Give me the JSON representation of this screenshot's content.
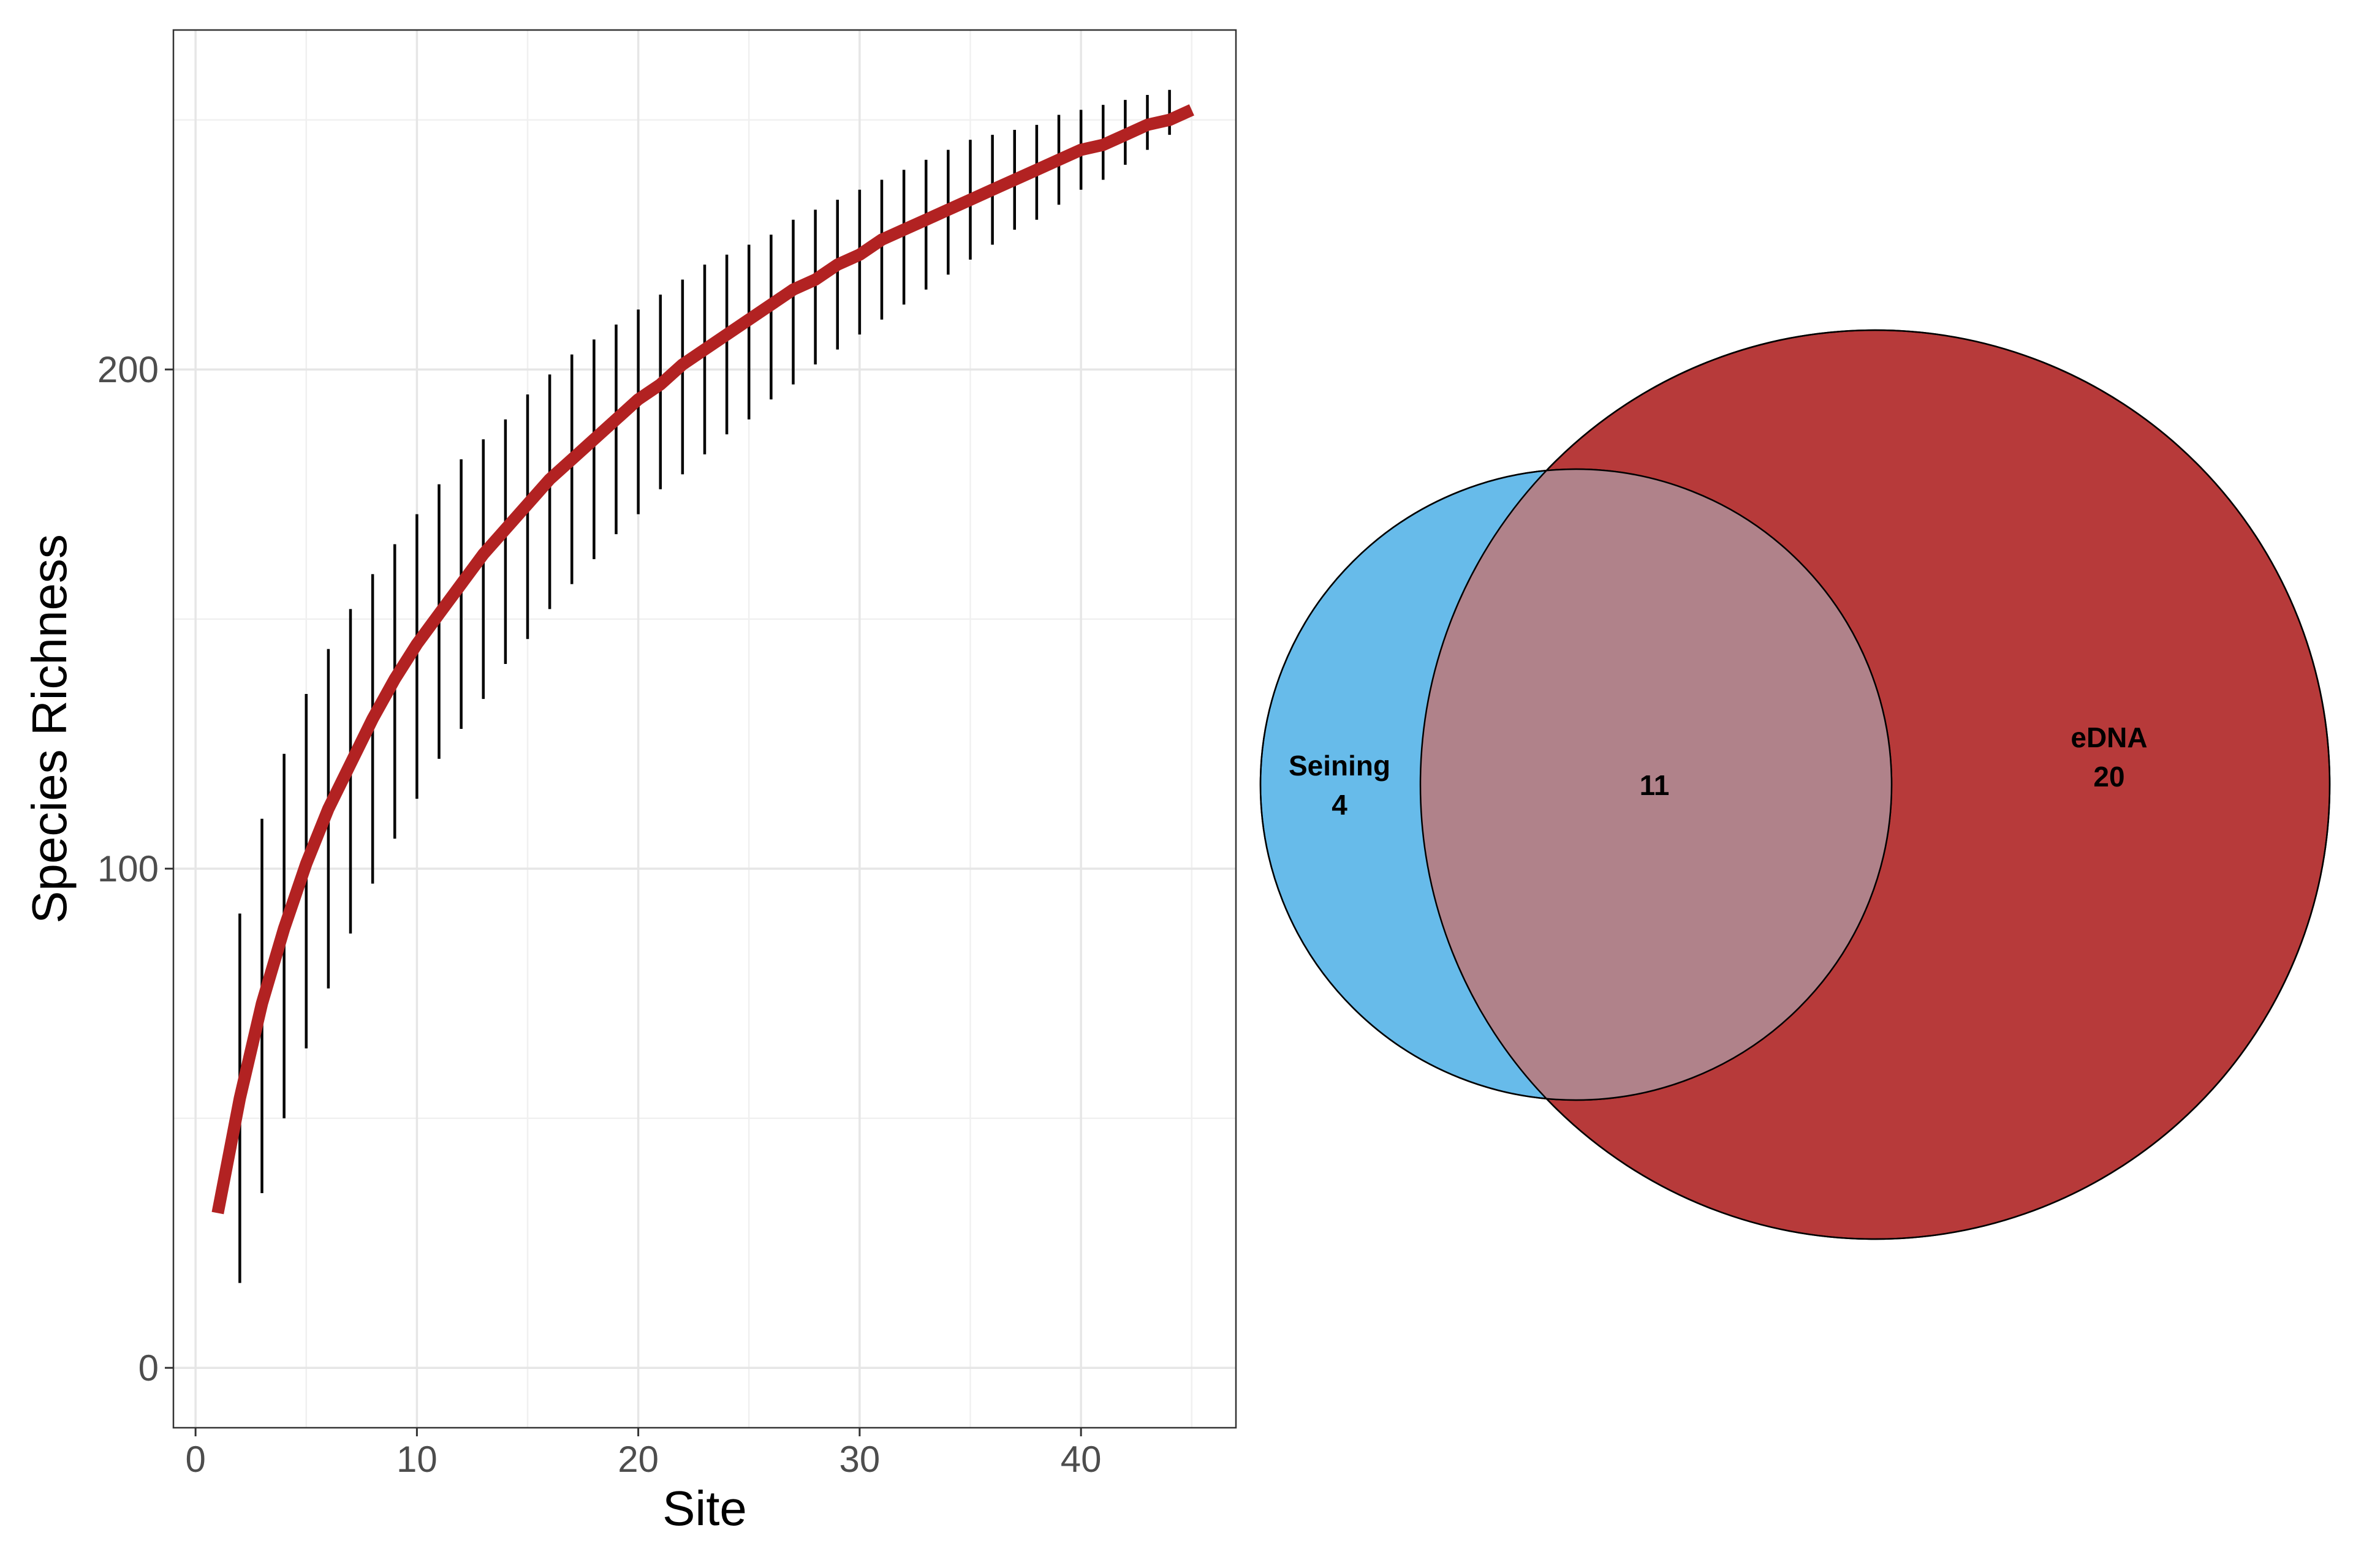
{
  "chart_data": [
    {
      "type": "line",
      "xlabel": "Site",
      "ylabel": "Species Richness",
      "xlim": [
        -1,
        47
      ],
      "ylim": [
        -12,
        268
      ],
      "x_ticks": [
        0,
        10,
        20,
        30,
        40
      ],
      "y_ticks": [
        0,
        100,
        200
      ],
      "x_minor_ticks": [
        5,
        15,
        25,
        35,
        45
      ],
      "y_minor_ticks": [
        50,
        150,
        250
      ],
      "grid": true,
      "line_color": "#B22222",
      "errorbar_color": "#000000",
      "series": [
        {
          "x": [
            1,
            2,
            3,
            4,
            5,
            6,
            7,
            8,
            9,
            10,
            11,
            12,
            13,
            14,
            15,
            16,
            17,
            18,
            19,
            20,
            21,
            22,
            23,
            24,
            25,
            26,
            27,
            28,
            29,
            30,
            31,
            32,
            33,
            34,
            35,
            36,
            37,
            38,
            39,
            40,
            41,
            42,
            43,
            44,
            45
          ],
          "y": [
            31,
            54,
            73,
            88,
            101,
            112,
            121,
            130,
            138,
            145,
            151,
            157,
            163,
            168,
            173,
            178,
            182,
            186,
            190,
            194,
            197,
            201,
            204,
            207,
            210,
            213,
            216,
            218,
            221,
            223,
            226,
            228,
            230,
            232,
            234,
            236,
            238,
            240,
            242,
            244,
            245,
            247,
            249,
            250,
            252
          ]
        }
      ],
      "error_bars": {
        "x": [
          2,
          3,
          4,
          5,
          6,
          7,
          8,
          9,
          10,
          11,
          12,
          13,
          14,
          15,
          16,
          17,
          18,
          19,
          20,
          21,
          22,
          23,
          24,
          25,
          26,
          27,
          28,
          29,
          30,
          31,
          32,
          33,
          34,
          35,
          36,
          37,
          38,
          39,
          40,
          41,
          42,
          43,
          44
        ],
        "lower": [
          17,
          35,
          50,
          64,
          76,
          87,
          97,
          106,
          114,
          122,
          128,
          134,
          141,
          146,
          152,
          157,
          162,
          167,
          171,
          176,
          179,
          183,
          187,
          190,
          194,
          197,
          201,
          204,
          207,
          210,
          213,
          216,
          219,
          222,
          225,
          228,
          230,
          233,
          236,
          238,
          241,
          244,
          247
        ],
        "upper": [
          91,
          110,
          123,
          135,
          144,
          152,
          159,
          165,
          171,
          177,
          182,
          186,
          190,
          195,
          199,
          203,
          206,
          209,
          212,
          215,
          218,
          221,
          223,
          225,
          227,
          230,
          232,
          234,
          236,
          238,
          240,
          242,
          244,
          246,
          247,
          248,
          249,
          251,
          252,
          253,
          254,
          255,
          256
        ]
      }
    },
    {
      "type": "venn",
      "sets": [
        {
          "name": "Seining",
          "count": 4,
          "color": "#67BBEA"
        },
        {
          "name": "eDNA",
          "count": 20,
          "color": "#B73A3A"
        }
      ],
      "intersection": {
        "count": 11,
        "color": "#B0828A"
      }
    }
  ]
}
